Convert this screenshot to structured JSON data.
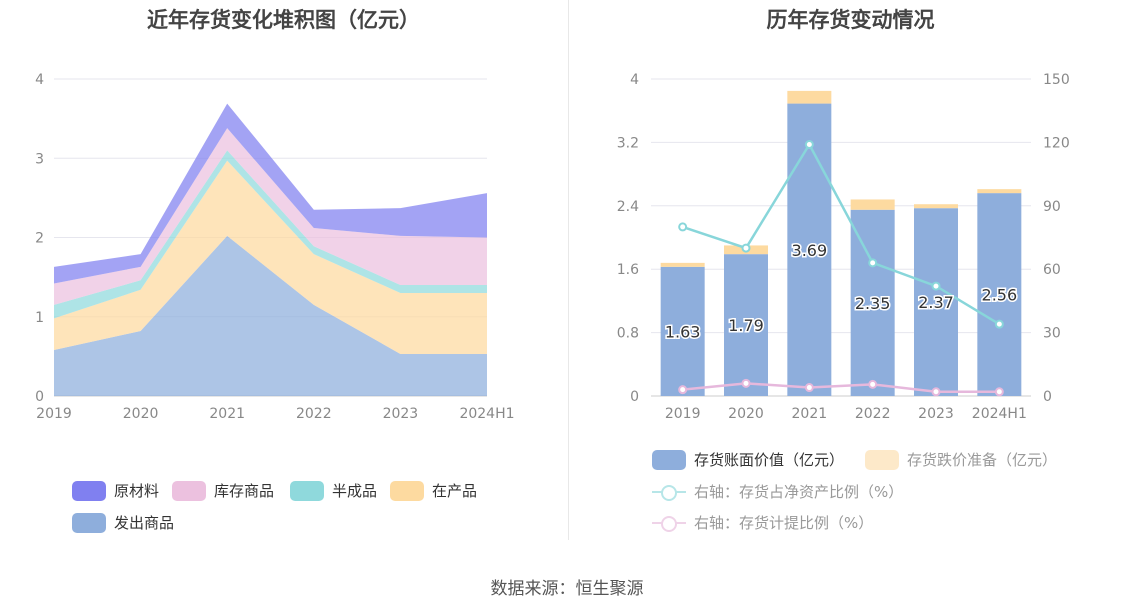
{
  "source": "数据来源：恒生聚源",
  "colors": {
    "raw": "#8080f0",
    "stock": "#ecc1df",
    "semi": "#8fd9dc",
    "wip": "#fddaa0",
    "shipped": "#8eaedc",
    "book": "#8eaedc",
    "provision": "#fddaa0",
    "ratio_net": "#88d6da",
    "ratio_prov": "#e6b8dc"
  },
  "chart_data": [
    {
      "type": "area",
      "stacked": true,
      "title": "近年存货变化堆积图（亿元）",
      "categories": [
        "2019",
        "2020",
        "2021",
        "2022",
        "2023",
        "2024H1"
      ],
      "ylim": [
        0,
        4
      ],
      "yticks": [
        "0",
        "1",
        "2",
        "3",
        "4"
      ],
      "grid": true,
      "legend_position": "bottom",
      "series": [
        {
          "name": "发出商品",
          "values": [
            0.58,
            0.82,
            2.02,
            1.15,
            0.53,
            0.53
          ]
        },
        {
          "name": "在产品",
          "values": [
            0.4,
            0.52,
            0.95,
            0.64,
            0.77,
            0.77
          ]
        },
        {
          "name": "半成品",
          "values": [
            0.17,
            0.12,
            0.13,
            0.1,
            0.1,
            0.1
          ]
        },
        {
          "name": "库存商品",
          "values": [
            0.27,
            0.17,
            0.28,
            0.23,
            0.62,
            0.6
          ]
        },
        {
          "name": "原材料",
          "values": [
            0.21,
            0.16,
            0.31,
            0.23,
            0.35,
            0.56
          ]
        }
      ],
      "legend_order": [
        "原材料",
        "库存商品",
        "半成品",
        "在产品",
        "发出商品"
      ]
    },
    {
      "type": "bar",
      "title": "历年存货变动情况",
      "categories": [
        "2019",
        "2020",
        "2021",
        "2022",
        "2023",
        "2024H1"
      ],
      "ylim": [
        0,
        4
      ],
      "yticks": [
        "0",
        "0.8",
        "1.6",
        "2.4",
        "3.2",
        "4"
      ],
      "y2lim": [
        0,
        150
      ],
      "y2ticks": [
        "0",
        "30",
        "60",
        "90",
        "120",
        "150"
      ],
      "grid": true,
      "legend_position": "bottom",
      "series": [
        {
          "name": "存货账面价值（亿元）",
          "type": "bar",
          "axis": "left",
          "values": [
            1.63,
            1.79,
            3.69,
            2.35,
            2.37,
            2.56
          ],
          "labels": [
            "1.63",
            "1.79",
            "3.69",
            "2.35",
            "2.37",
            "2.56"
          ]
        },
        {
          "name": "存货跌价准备（亿元）",
          "type": "bar",
          "axis": "left",
          "stack": true,
          "values": [
            0.05,
            0.11,
            0.16,
            0.13,
            0.05,
            0.05
          ]
        },
        {
          "name": "右轴：存货占净资产比例（%）",
          "type": "line",
          "axis": "right",
          "values": [
            80,
            70,
            119,
            63,
            52,
            34
          ]
        },
        {
          "name": "右轴：存货计提比例（%）",
          "type": "line",
          "axis": "right",
          "values": [
            3,
            6,
            4,
            5.5,
            2,
            2
          ]
        }
      ]
    }
  ]
}
